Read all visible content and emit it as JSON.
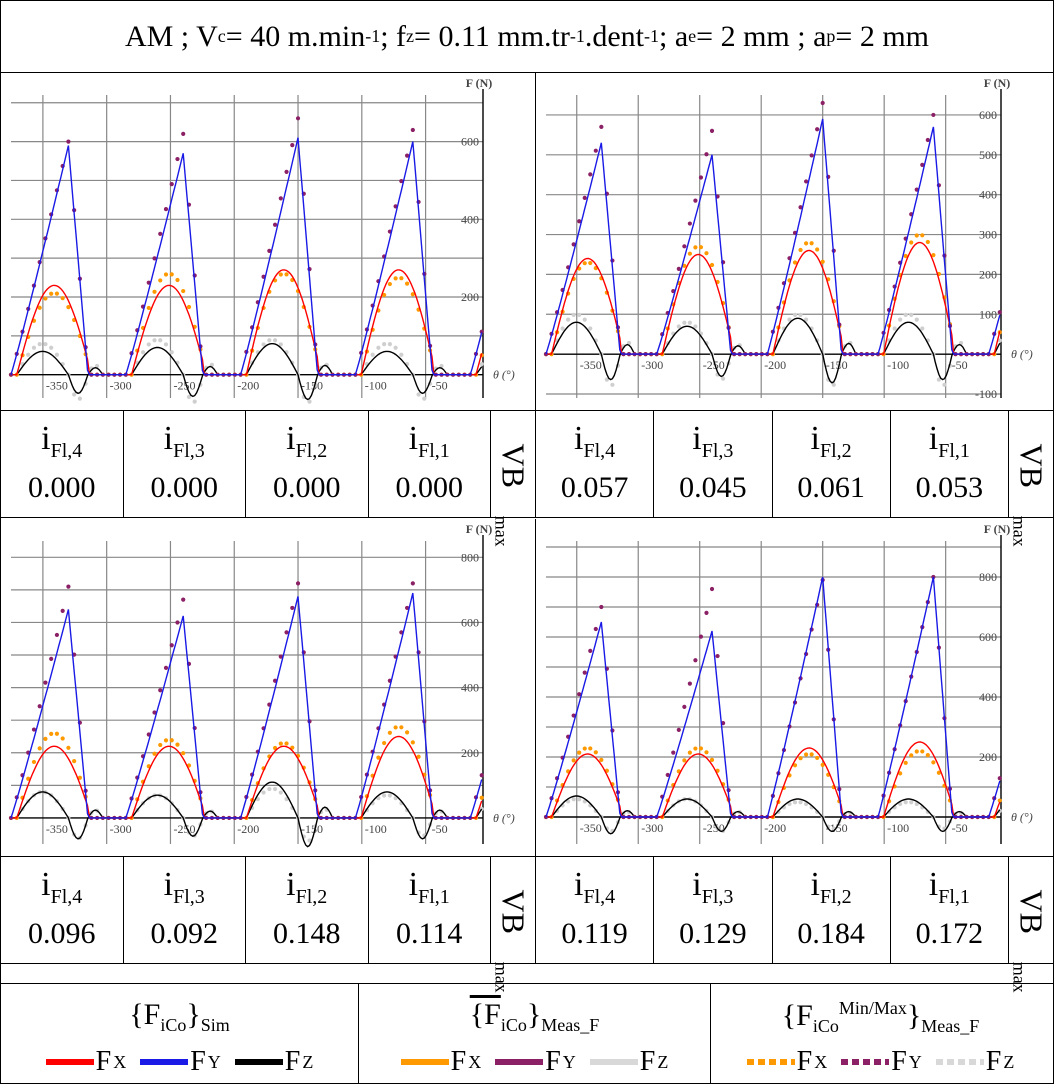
{
  "header": {
    "prefix": "AM ; V",
    "vc_sub": "c",
    "vc_val": " = 40 m.min",
    "vc_exp": "-1",
    "fz_pre": " ; f",
    "fz_sub": "z",
    "fz_val": " = 0.11 mm.tr",
    "fz_exp1": "-1",
    "fz_mid": ".dent",
    "fz_exp2": "-1",
    "ae_pre": " ; a",
    "ae_sub": "e",
    "ae_val": " = 2 mm ; a",
    "ap_sub": "p",
    "ap_val": " = 2 mm"
  },
  "axis_labels": {
    "y": "F (N)",
    "x": "θ (°)",
    "vb_main": "VB",
    "vb_sub": "max"
  },
  "flank_names": [
    {
      "main": "i",
      "sub": "Fl,4"
    },
    {
      "main": "i",
      "sub": "Fl,3"
    },
    {
      "main": "i",
      "sub": "Fl,2"
    },
    {
      "main": "i",
      "sub": "Fl,1"
    }
  ],
  "panels": [
    {
      "vb": [
        "0.000",
        "0.000",
        "0.000",
        "0.000"
      ],
      "xticks": [
        "-350",
        "-300",
        "-250",
        "-200",
        "-150",
        "-100",
        "-50"
      ],
      "yticks": [
        "200",
        "400",
        "600"
      ]
    },
    {
      "vb": [
        "0.057",
        "0.045",
        "0.061",
        "0.053"
      ],
      "xticks": [
        "-350",
        "-300",
        "-250",
        "-200",
        "-150",
        "-100",
        "-50"
      ],
      "yticks": [
        "-100",
        "100",
        "200",
        "300",
        "400",
        "500",
        "600"
      ]
    },
    {
      "vb": [
        "0.096",
        "0.092",
        "0.148",
        "0.114"
      ],
      "xticks": [
        "-350",
        "-300",
        "-250",
        "-200",
        "-150",
        "-100",
        "-50"
      ],
      "yticks": [
        "200",
        "400",
        "600",
        "800"
      ]
    },
    {
      "vb": [
        "0.119",
        "0.129",
        "0.184",
        "0.172"
      ],
      "xticks": [
        "-350",
        "-300",
        "-250",
        "-200",
        "-150",
        "-100",
        "-50"
      ],
      "yticks": [
        "200",
        "400",
        "600",
        "800"
      ]
    }
  ],
  "legend": {
    "groups": [
      {
        "title_main": "{F",
        "title_sub": "iCo",
        "title_end": "}",
        "title_tail": "Sim",
        "items": [
          {
            "label": "F",
            "sub": "X",
            "color": "#ff0000",
            "style": "solid"
          },
          {
            "label": "F",
            "sub": "Y",
            "color": "#1a1ae6",
            "style": "solid"
          },
          {
            "label": "F",
            "sub": "Z",
            "color": "#000000",
            "style": "solid"
          }
        ]
      },
      {
        "title_main": "{F",
        "title_sub": "iCo",
        "title_end": "}",
        "title_tail": "Meas_F",
        "items": [
          {
            "label": "F",
            "sub": "X",
            "color": "#ff9900",
            "style": "solid"
          },
          {
            "label": "F",
            "sub": "Y",
            "color": "#8b2066",
            "style": "solid"
          },
          {
            "label": "F",
            "sub": "Z",
            "color": "#d8d8d8",
            "style": "solid"
          }
        ]
      },
      {
        "title_main": "{F",
        "title_sub": "iCo",
        "title_sup": "Min/Max",
        "title_end": "}",
        "title_tail": "Meas_F",
        "items": [
          {
            "label": "F",
            "sub": "X",
            "color": "#ff9900",
            "style": "dotted"
          },
          {
            "label": "F",
            "sub": "Y",
            "color": "#8b2066",
            "style": "dotted"
          },
          {
            "label": "F",
            "sub": "Z",
            "color": "#d8d8d8",
            "style": "dotted"
          }
        ]
      }
    ]
  },
  "chart_data": [
    {
      "type": "line",
      "xlim": [
        -375,
        -5
      ],
      "ylim": [
        -60,
        720
      ],
      "x_period": 90,
      "peaks_x": [
        -330,
        -240,
        -150,
        -60
      ],
      "series": [
        {
          "name": "FY sim",
          "peaks": [
            590,
            570,
            610,
            600
          ],
          "color": "#1a1ae6"
        },
        {
          "name": "FY meas",
          "peaks": [
            600,
            620,
            660,
            630
          ],
          "color": "#8b2066"
        },
        {
          "name": "FX sim",
          "peaks": [
            230,
            230,
            270,
            270
          ],
          "color": "#ff0000"
        },
        {
          "name": "FX meas",
          "peaks": [
            210,
            260,
            260,
            250
          ],
          "color": "#ff9900"
        },
        {
          "name": "FZ sim",
          "peaks": [
            60,
            70,
            80,
            60
          ],
          "color": "#000000"
        },
        {
          "name": "FZ meas",
          "peaks": [
            80,
            90,
            90,
            80
          ],
          "color": "#cfcfcf"
        }
      ]
    },
    {
      "type": "line",
      "xlim": [
        -375,
        -5
      ],
      "ylim": [
        -110,
        650
      ],
      "x_period": 90,
      "peaks_x": [
        -330,
        -240,
        -150,
        -60
      ],
      "series": [
        {
          "name": "FY sim",
          "peaks": [
            530,
            500,
            590,
            570
          ],
          "color": "#1a1ae6"
        },
        {
          "name": "FY meas",
          "peaks": [
            570,
            560,
            630,
            600
          ],
          "color": "#8b2066"
        },
        {
          "name": "FX sim",
          "peaks": [
            240,
            250,
            260,
            280
          ],
          "color": "#ff0000"
        },
        {
          "name": "FX meas",
          "peaks": [
            230,
            270,
            280,
            300
          ],
          "color": "#ff9900"
        },
        {
          "name": "FZ sim",
          "peaks": [
            80,
            70,
            90,
            80
          ],
          "color": "#000000"
        },
        {
          "name": "FZ meas",
          "peaks": [
            100,
            80,
            100,
            100
          ],
          "color": "#cfcfcf"
        }
      ]
    },
    {
      "type": "line",
      "xlim": [
        -375,
        -5
      ],
      "ylim": [
        -80,
        850
      ],
      "x_period": 90,
      "peaks_x": [
        -330,
        -240,
        -150,
        -60
      ],
      "series": [
        {
          "name": "FY sim",
          "peaks": [
            640,
            620,
            680,
            690
          ],
          "color": "#1a1ae6"
        },
        {
          "name": "FY meas",
          "peaks": [
            710,
            670,
            720,
            720
          ],
          "color": "#8b2066"
        },
        {
          "name": "FX sim",
          "peaks": [
            220,
            220,
            220,
            250
          ],
          "color": "#ff0000"
        },
        {
          "name": "FX meas",
          "peaks": [
            260,
            240,
            230,
            280
          ],
          "color": "#ff9900"
        },
        {
          "name": "FZ sim",
          "peaks": [
            80,
            70,
            110,
            80
          ],
          "color": "#000000"
        },
        {
          "name": "FZ meas",
          "peaks": [
            80,
            70,
            90,
            70
          ],
          "color": "#cfcfcf"
        }
      ]
    },
    {
      "type": "line",
      "xlim": [
        -375,
        -5
      ],
      "ylim": [
        -90,
        920
      ],
      "x_period": 90,
      "peaks_x": [
        -330,
        -240,
        -150,
        -60
      ],
      "series": [
        {
          "name": "FY sim",
          "peaks": [
            650,
            620,
            800,
            800
          ],
          "color": "#1a1ae6"
        },
        {
          "name": "FY meas",
          "peaks": [
            700,
            760,
            790,
            800
          ],
          "color": "#8b2066"
        },
        {
          "name": "FX sim",
          "peaks": [
            210,
            210,
            230,
            250
          ],
          "color": "#ff0000"
        },
        {
          "name": "FX meas",
          "peaks": [
            230,
            230,
            210,
            220
          ],
          "color": "#ff9900"
        },
        {
          "name": "FZ sim",
          "peaks": [
            70,
            60,
            60,
            60
          ],
          "color": "#000000"
        },
        {
          "name": "FZ meas",
          "peaks": [
            60,
            60,
            50,
            50
          ],
          "color": "#cfcfcf"
        }
      ]
    }
  ]
}
